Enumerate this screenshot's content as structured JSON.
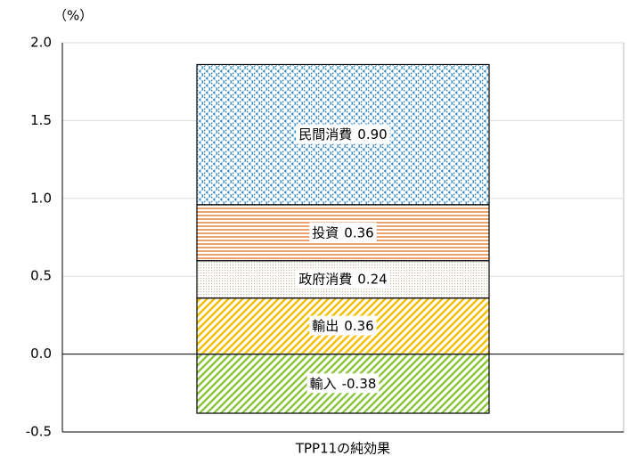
{
  "chart_data": {
    "type": "stacked_bar",
    "y_label": "（%）",
    "categories": [
      "TPP11の純効果"
    ],
    "series": [
      {
        "name": "輸入",
        "color": "#8cc63f",
        "pattern": "diagonal",
        "values": [
          -0.38
        ],
        "value_labels": [
          "-0.38"
        ]
      },
      {
        "name": "輸出",
        "color": "#f5c000",
        "pattern": "diagonal",
        "values": [
          0.36
        ],
        "value_labels": [
          "0.36"
        ]
      },
      {
        "name": "政府消費",
        "color": "#c8bca0",
        "pattern": "dots",
        "values": [
          0.24
        ],
        "value_labels": [
          "0.24"
        ]
      },
      {
        "name": "投資",
        "color": "#e8823a",
        "pattern": "horizontal",
        "values": [
          0.36
        ],
        "value_labels": [
          "0.36"
        ]
      },
      {
        "name": "民間消費",
        "color": "#1e7fc8",
        "pattern": "crosshatch",
        "values": [
          0.9
        ],
        "value_labels": [
          "0.90"
        ]
      }
    ],
    "ylim": [
      -0.5,
      2.0
    ],
    "yticks": [
      -0.5,
      {
        "value": 0,
        "label": "0.0"
      },
      0.5,
      {
        "value": 1,
        "label": "1.0"
      },
      1.5,
      {
        "value": 2,
        "label": "2.0"
      }
    ],
    "grid": true
  }
}
